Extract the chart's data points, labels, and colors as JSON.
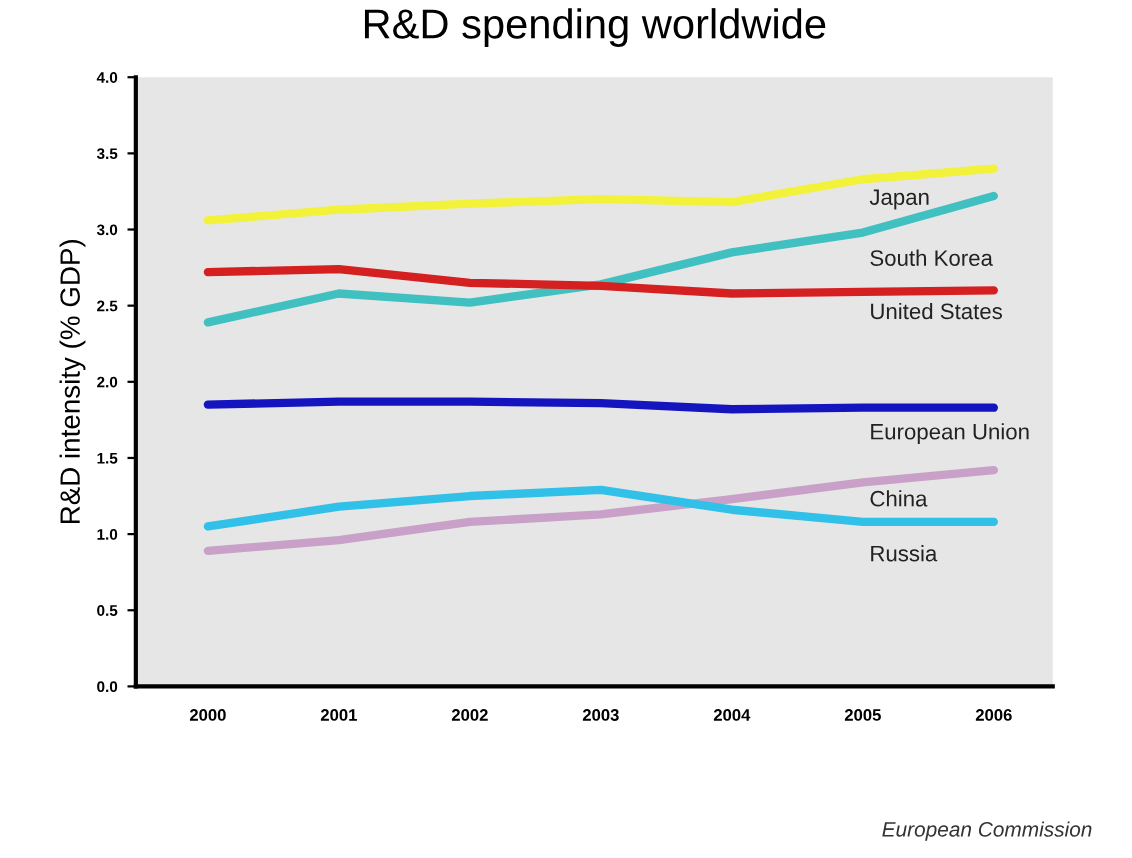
{
  "chart_data": {
    "type": "line",
    "title": "R&D spending worldwide",
    "ylabel": "R&D intensity (% GDP)",
    "categories": [
      "2000",
      "2001",
      "2002",
      "2003",
      "2004",
      "2005",
      "2006"
    ],
    "series": [
      {
        "name": "Japan",
        "color": "#f2f23a",
        "values": [
          3.06,
          3.13,
          3.17,
          3.2,
          3.18,
          3.33,
          3.4
        ]
      },
      {
        "name": "South Korea",
        "color": "#40c0c0",
        "values": [
          2.39,
          2.58,
          2.52,
          2.64,
          2.85,
          2.98,
          3.22
        ]
      },
      {
        "name": "United States",
        "color": "#d42020",
        "values": [
          2.72,
          2.74,
          2.65,
          2.63,
          2.58,
          2.59,
          2.6
        ]
      },
      {
        "name": "European Union",
        "color": "#1515c0",
        "values": [
          1.85,
          1.87,
          1.87,
          1.86,
          1.82,
          1.83,
          1.83
        ]
      },
      {
        "name": "China",
        "color": "#c8a0c8",
        "values": [
          0.89,
          0.96,
          1.08,
          1.13,
          1.23,
          1.34,
          1.42
        ]
      },
      {
        "name": "Russia",
        "color": "#30c0e8",
        "values": [
          1.05,
          1.18,
          1.25,
          1.29,
          1.16,
          1.08,
          1.08
        ]
      }
    ],
    "ylim": [
      0,
      4
    ],
    "yticks": [
      {
        "value": 0,
        "label": "0.0"
      },
      0.5,
      {
        "value": 1,
        "label": "1.0"
      },
      1.5,
      {
        "value": 2,
        "label": "2.0"
      },
      2.5,
      {
        "value": 3,
        "label": "3.0"
      },
      3.5,
      {
        "value": 4,
        "label": "4.0"
      }
    ],
    "grid": false,
    "legend": false,
    "marker": "none",
    "line_style": "solid",
    "annotations": [
      "European Commission"
    ]
  }
}
